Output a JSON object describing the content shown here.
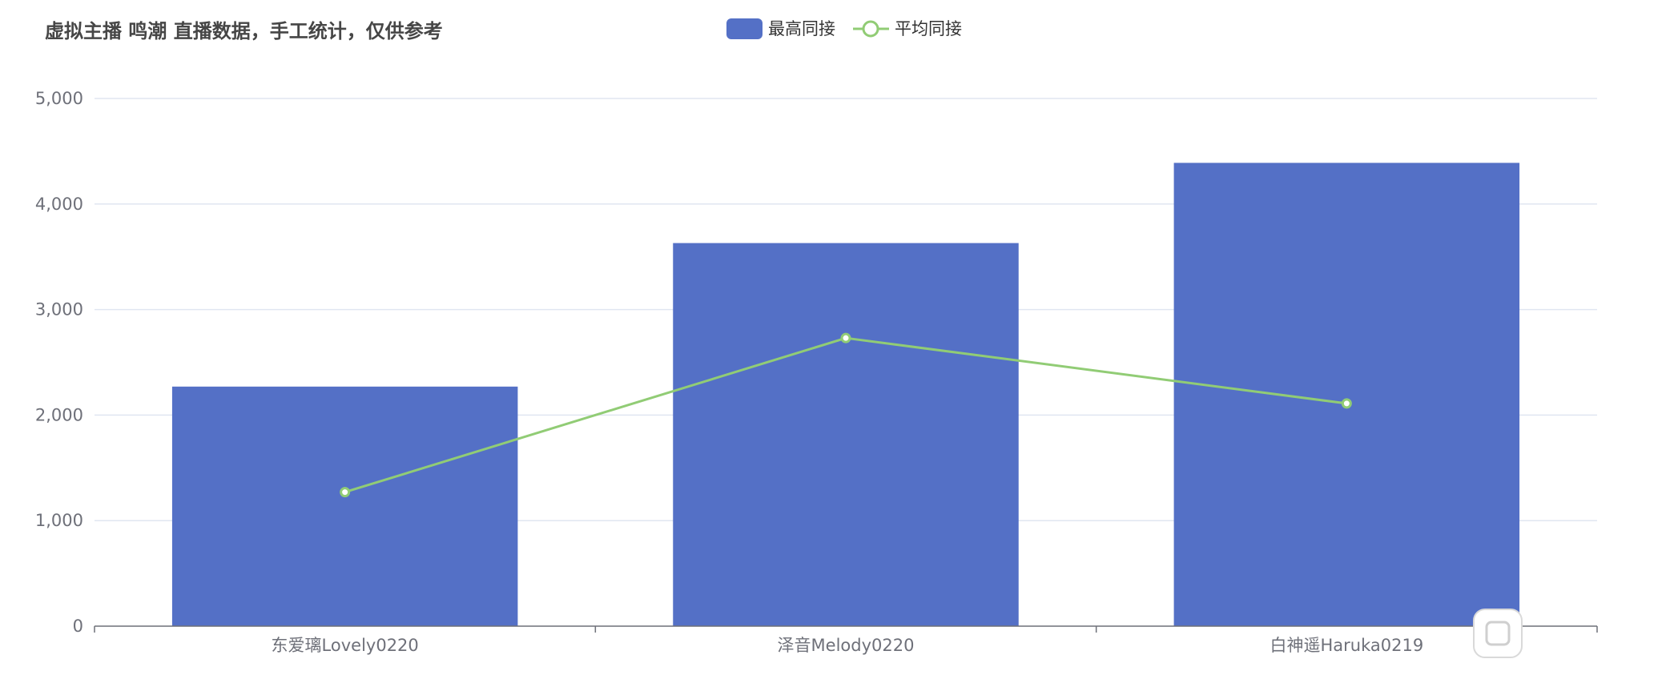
{
  "chart_data": {
    "type": "bar",
    "title": "虚拟主播 鸣潮 直播数据，手工统计，仅供参考",
    "categories": [
      "东爱璃Lovely0220",
      "泽音Melody0220",
      "白神遥Haruka0219"
    ],
    "series": [
      {
        "name": "最高同接",
        "type": "bar",
        "color": "#5470c6",
        "values": [
          2270,
          3630,
          4390
        ]
      },
      {
        "name": "平均同接",
        "type": "line",
        "color": "#91cc75",
        "values": [
          1270,
          2730,
          2110
        ]
      }
    ],
    "ylim": [
      0,
      5000
    ],
    "yticks": [
      "0",
      "1,000",
      "2,000",
      "3,000",
      "4,000",
      "5,000"
    ],
    "ytick_values": [
      0,
      1000,
      2000,
      3000,
      4000,
      5000
    ],
    "xlabel": "",
    "ylabel": "",
    "grid": true,
    "legend": "top-center"
  }
}
